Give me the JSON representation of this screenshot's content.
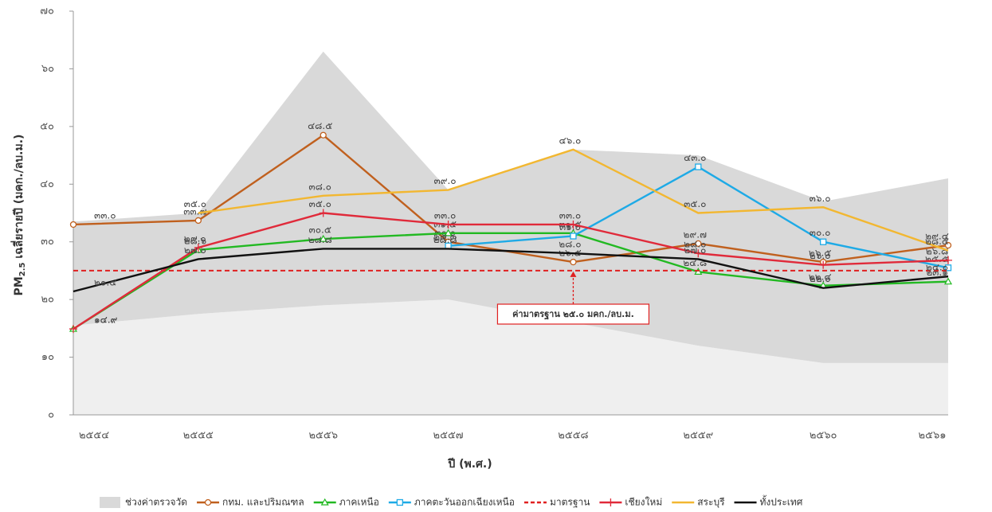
{
  "chart_data": {
    "type": "line",
    "y_label": "PM",
    "y_label_sub": "2.5",
    "y_label_rest": " เฉลี่ยรายปี (มคก./ลบ.ม.)",
    "x_label": "ปี (พ.ศ.)",
    "categories": [
      "๒๕๕๔",
      "๒๕๕๕",
      "๒๕๕๖",
      "๒๕๕๗",
      "๒๕๕๘",
      "๒๕๕๙",
      "๒๕๖๐",
      "๒๕๖๑"
    ],
    "ylim": [
      0,
      70
    ],
    "yticks": [
      {
        "value": 0,
        "label": "๐"
      },
      {
        "value": 10,
        "label": "๑๐"
      },
      {
        "value": 20,
        "label": "๒๐"
      },
      {
        "value": 30,
        "label": "๓๐"
      },
      {
        "value": 40,
        "label": "๔๐"
      },
      {
        "value": 50,
        "label": "๕๐"
      },
      {
        "value": 60,
        "label": "๖๐"
      },
      {
        "value": 70,
        "label": "๗๐"
      }
    ],
    "range": {
      "name": "ช่วงค่าตรวจวัด",
      "color": "#d9d9d9",
      "lower_color": "#efefef",
      "upper": [
        33.5,
        35,
        63,
        39,
        46,
        45,
        37,
        41
      ],
      "lower": [
        15.5,
        17.5,
        19,
        20,
        16,
        12,
        9,
        9
      ]
    },
    "series": [
      {
        "name": "กทม. และปริมณฑล",
        "color": "#c0601e",
        "marker": "circle",
        "values": [
          33.0,
          33.7,
          48.5,
          30.0,
          26.5,
          29.7,
          26.5,
          29.4
        ],
        "value_labels": [
          "๓๓.๐",
          "๓๓.๗",
          "๔๘.๕",
          "๓๐.๐",
          "๒๖.๕",
          "๒๙.๗",
          "๒๖.๕",
          "๒๙.๔"
        ]
      },
      {
        "name": "ภาคเหนือ",
        "color": "#22b922",
        "marker": "triangle",
        "values": [
          14.9,
          28.6,
          30.5,
          31.5,
          31.5,
          24.8,
          22.4,
          23.1
        ],
        "value_labels": [
          "๑๔.๙",
          "๒๘.๖",
          "๓๐.๕",
          "๓๑.๕",
          "๓๑.๕",
          "๒๔.๘",
          "๒๒.๔",
          "๒๓.๑"
        ]
      },
      {
        "name": "ภาคตะวันออกเฉียงเหนือ",
        "color": "#1eaae6",
        "marker": "square",
        "values": [
          null,
          null,
          null,
          29.3,
          31.0,
          43.0,
          30.0,
          25.5
        ],
        "value_labels": [
          null,
          null,
          null,
          "๒๙.๓",
          "๓๑.๐",
          "๔๓.๐",
          "๓๐.๐",
          "๒๕.๕"
        ]
      },
      {
        "name": "มาตรฐาน",
        "color": "#e02020",
        "dashed": true,
        "values": [
          25.0,
          25.0,
          25.0,
          25.0,
          25.0,
          25.0,
          25.0,
          25.0
        ]
      },
      {
        "name": "เชียงใหม่",
        "color": "#e02a3a",
        "marker": "plus",
        "values": [
          14.9,
          29.0,
          35.0,
          33.0,
          33.0,
          28.0,
          26.0,
          26.8
        ],
        "value_labels": [
          "๑๔.๙",
          "๒๙.๐",
          "๓๕.๐",
          "๓๓.๐",
          "๓๓.๐",
          "๒๘.๐",
          "๒๖.๐",
          "๒๖.๘"
        ]
      },
      {
        "name": "สระบุรี",
        "color": "#f2b731",
        "values": [
          null,
          35.0,
          38.0,
          39.0,
          46.0,
          35.0,
          36.0,
          28.5
        ],
        "value_labels": [
          null,
          "๓๕.๐",
          "๓๘.๐",
          "๓๙.๐",
          "๔๖.๐",
          "๓๕.๐",
          "๓๖.๐",
          "๒๘.๕"
        ]
      },
      {
        "name": "ทั้งประเทศ",
        "color": "#111111",
        "values": [
          21.4,
          27.0,
          28.8,
          28.8,
          28.0,
          27.0,
          22.0,
          24.0
        ],
        "value_labels": [
          "๒๑.๔",
          "๒๗.๐",
          "๒๘.๘",
          "๒๘.๘",
          "๒๘.๐",
          "๒๗.๐",
          "๒๒.๐",
          "๒๔.๐"
        ]
      }
    ],
    "annotation": "ค่ามาตรฐาน ๒๕.๐ มคก./ลบ.ม."
  }
}
